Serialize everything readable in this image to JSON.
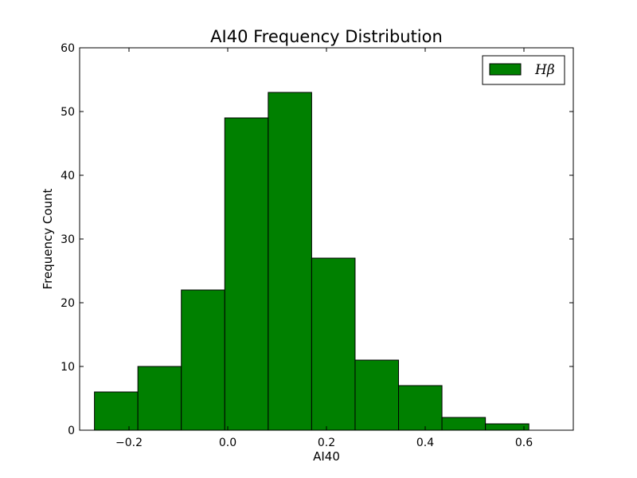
{
  "chart_data": {
    "type": "bar",
    "title": "AI40 Frequency Distribution",
    "xlabel": "AI40",
    "ylabel": "Frequency Count",
    "xlim": [
      -0.3,
      0.7
    ],
    "ylim": [
      0,
      60
    ],
    "bin_edges": [
      -0.27,
      -0.182,
      -0.094,
      -0.006,
      0.082,
      0.17,
      0.258,
      0.346,
      0.434,
      0.522,
      0.61
    ],
    "values": [
      6,
      10,
      22,
      49,
      53,
      27,
      11,
      7,
      2,
      1
    ],
    "x_ticks": [
      -0.2,
      0.0,
      0.2,
      0.4,
      0.6
    ],
    "x_tick_labels": [
      "−0.2",
      "0.0",
      "0.2",
      "0.4",
      "0.6"
    ],
    "y_ticks": [
      0,
      10,
      20,
      30,
      40,
      50,
      60
    ],
    "y_tick_labels": [
      "0",
      "10",
      "20",
      "30",
      "40",
      "50",
      "60"
    ],
    "series": [
      {
        "name": "Hβ",
        "color": "#008000"
      }
    ],
    "legend_position": "top-right",
    "grid": false
  }
}
